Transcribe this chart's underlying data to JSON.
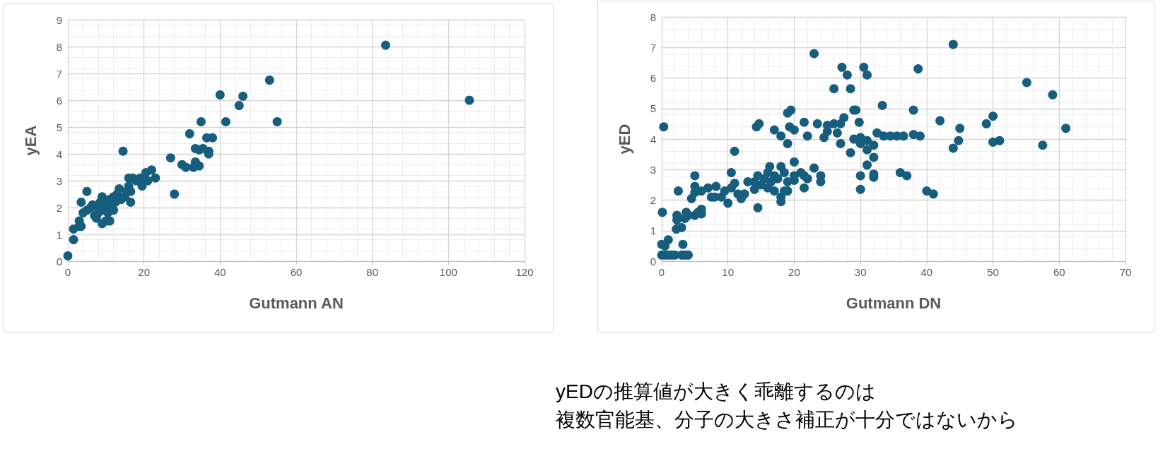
{
  "chart_data": [
    {
      "type": "scatter",
      "xlabel": "Gutmann AN",
      "ylabel": "yEA",
      "xlim": [
        0,
        120
      ],
      "xticks": [
        0,
        20,
        40,
        60,
        80,
        100,
        120
      ],
      "ylim": [
        0,
        9
      ],
      "yticks": [
        0,
        1,
        2,
        3,
        4,
        5,
        6,
        7,
        8,
        9
      ],
      "grid": true,
      "marker": "circle",
      "series": [
        {
          "color": "#175e7e",
          "x": [
            0,
            1.5,
            1.5,
            3,
            3.5,
            3,
            4,
            3.5,
            5,
            5,
            6,
            6.5,
            7,
            7.5,
            8,
            8,
            8.5,
            9,
            9,
            9.5,
            10,
            10,
            10.5,
            11,
            11,
            11.5,
            12,
            12,
            12.5,
            13,
            13.5,
            14,
            14.5,
            15,
            15.5,
            16,
            16,
            16.5,
            16.5,
            17,
            18,
            19,
            19.5,
            20.5,
            21,
            22,
            23,
            27,
            28,
            30,
            31,
            32,
            33,
            33.5,
            33.5,
            34.5,
            34.5,
            35,
            35.5,
            36.5,
            37,
            37,
            38,
            40,
            41.5,
            45,
            46,
            53,
            55,
            83.5,
            105.5
          ],
          "values": [
            0.2,
            0.8,
            1.2,
            1.3,
            1.3,
            1.5,
            1.8,
            2.2,
            2.6,
            1.9,
            2.0,
            2.1,
            1.7,
            1.6,
            1.8,
            2.0,
            2.2,
            2.4,
            1.4,
            1.9,
            1.5,
            2.1,
            1.8,
            2.3,
            1.5,
            2.0,
            2.4,
            1.9,
            2.2,
            2.5,
            2.7,
            2.3,
            4.1,
            2.4,
            2.6,
            2.8,
            3.1,
            2.2,
            2.6,
            3.1,
            3.0,
            3.1,
            2.8,
            3.3,
            3.0,
            3.4,
            3.1,
            3.85,
            2.5,
            3.6,
            3.5,
            4.75,
            3.5,
            3.7,
            4.2,
            3.55,
            4.15,
            5.2,
            4.2,
            4.6,
            4.0,
            4.1,
            4.6,
            6.2,
            5.2,
            5.8,
            6.15,
            6.75,
            5.2,
            8.05,
            6.0
          ]
        }
      ]
    },
    {
      "type": "scatter",
      "xlabel": "Gutmann DN",
      "ylabel": "yED",
      "xlim": [
        0,
        70
      ],
      "xticks": [
        0,
        10,
        20,
        30,
        40,
        50,
        60,
        70
      ],
      "ylim": [
        0,
        8
      ],
      "yticks": [
        0,
        1,
        2,
        3,
        4,
        5,
        6,
        7,
        8
      ],
      "grid": true,
      "marker": "circle",
      "annotations": [
        "yEDの推算値が大きく乖離するのは",
        "複数官能基、分子の大きさ補正が十分ではないから"
      ],
      "series": [
        {
          "color": "#175e7e",
          "x": [
            0.3,
            0.1,
            0,
            0.5,
            1,
            0,
            0.5,
            1,
            1.5,
            2,
            3,
            3.5,
            4,
            3.2,
            2.5,
            2.3,
            2.3,
            2.2,
            3,
            3.5,
            3.7,
            4,
            5,
            5.5,
            6,
            6,
            4.5,
            5,
            5,
            5,
            6,
            7,
            7.5,
            8.2,
            8,
            9,
            9.5,
            10,
            10.5,
            10.5,
            11,
            11,
            11.5,
            12,
            12.5,
            13,
            14,
            14,
            14.5,
            14.5,
            14.3,
            14.7,
            15,
            15.5,
            16,
            16,
            16.3,
            16.5,
            17,
            17,
            17.5,
            17,
            18,
            18,
            18,
            18,
            18.5,
            18.5,
            19,
            19,
            19,
            19,
            19.5,
            19.3,
            20,
            20,
            20,
            20,
            21,
            21.5,
            22,
            21.5,
            22,
            21.5,
            23,
            23,
            23.5,
            24,
            24,
            24.5,
            25,
            25,
            26,
            26,
            26.5,
            27,
            27,
            27.2,
            27.5,
            28,
            28.5,
            28.5,
            29,
            29.3,
            29,
            29.8,
            30,
            30,
            30,
            30,
            30.5,
            31,
            31,
            31,
            31,
            32,
            32,
            32,
            32,
            32.5,
            33.3,
            33.5,
            34.5,
            35.5,
            36.5,
            36,
            37,
            38,
            38,
            38.7,
            39,
            40,
            41,
            42,
            44,
            44,
            44.8,
            45,
            49,
            50,
            50,
            51,
            55.1,
            57.5,
            59,
            61
          ],
          "values": [
            4.4,
            1.6,
            0.55,
            0.5,
            0.7,
            0.2,
            0.2,
            0.2,
            0.2,
            0.2,
            0.2,
            0.2,
            0.2,
            0.55,
            2.3,
            1.35,
            1.5,
            1.05,
            1.1,
            1.4,
            1.6,
            1.5,
            1.5,
            1.6,
            1.7,
            1.55,
            2.05,
            2.25,
            2.45,
            2.8,
            2.3,
            2.4,
            2.1,
            2.45,
            2.1,
            2.1,
            2.3,
            1.9,
            2.4,
            2.9,
            2.55,
            3.6,
            2.2,
            2.05,
            2.2,
            2.6,
            2.35,
            2.6,
            2.8,
            1.75,
            4.4,
            4.5,
            2.5,
            2.7,
            2.4,
            2.9,
            3.1,
            2.6,
            2.8,
            2.3,
            2.7,
            4.3,
            3.1,
            2.1,
            1.95,
            4.1,
            2.9,
            2.3,
            2.6,
            2.3,
            3.85,
            4.85,
            4.95,
            4.4,
            4.3,
            2.65,
            3.25,
            2.8,
            2.9,
            2.8,
            2.7,
            4.55,
            4.1,
            2.4,
            6.8,
            3.05,
            4.5,
            2.8,
            2.6,
            4.05,
            4.45,
            4.25,
            5.65,
            4.5,
            4.2,
            3.85,
            4.5,
            6.35,
            4.7,
            6.1,
            3.55,
            5.65,
            4.95,
            4.95,
            4.0,
            4.55,
            2.8,
            2.35,
            4.05,
            3.85,
            6.35,
            6.1,
            3.95,
            3.65,
            3.15,
            3.4,
            3.8,
            2.85,
            2.75,
            4.2,
            5.1,
            4.1,
            4.1,
            4.1,
            4.1,
            2.9,
            2.8,
            4.95,
            4.15,
            6.3,
            4.1,
            2.3,
            2.2,
            4.6,
            7.1,
            3.7,
            3.95,
            4.35,
            4.5,
            4.75,
            3.9,
            3.95,
            5.85,
            3.8,
            5.45,
            4.35
          ]
        }
      ]
    }
  ]
}
